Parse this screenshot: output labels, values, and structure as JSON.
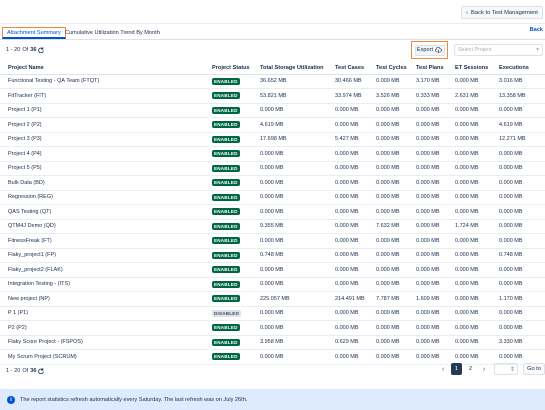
{
  "header": {
    "back_label": "Back to Test Management"
  },
  "tabs": [
    {
      "label": "Attachment Summary"
    },
    {
      "label": "Cumulative Utilization Trend By Month"
    }
  ],
  "back_link": "Back",
  "pager": {
    "range": "1 - 20",
    "of_label": "Of",
    "total": "36"
  },
  "toolbar": {
    "export_label": "Export",
    "select_placeholder": "Select Project"
  },
  "table": {
    "headers": [
      "Project Name",
      "Project Status",
      "Total Storage Utilization",
      "Test Cases",
      "Test Cycles",
      "Test Plans",
      "ET Sessions",
      "Executions"
    ],
    "rows": [
      [
        "Functional Testing - QA Team (FTQT)",
        "ENABLED",
        "36.652 MB",
        "30.466 MB",
        "0.000 MB",
        "3.170 MB",
        "0.000 MB",
        "3.016 MB"
      ],
      [
        "FitTracker (FIT)",
        "ENABLED",
        "53.821 MB",
        "33.974 MB",
        "3.526 MB",
        "0.333 MB",
        "2.631 MB",
        "13.358 MB"
      ],
      [
        "Project 1 (P1)",
        "ENABLED",
        "0.000 MB",
        "0.000 MB",
        "0.000 MB",
        "0.000 MB",
        "0.000 MB",
        "0.000 MB"
      ],
      [
        "Project 2 (P2)",
        "ENABLED",
        "4.619 MB",
        "0.000 MB",
        "0.000 MB",
        "0.000 MB",
        "0.000 MB",
        "4.619 MB"
      ],
      [
        "Project 3 (P3)",
        "ENABLED",
        "17.698 MB",
        "5.427 MB",
        "0.000 MB",
        "0.000 MB",
        "0.000 MB",
        "12.271 MB"
      ],
      [
        "Project 4 (P4)",
        "ENABLED",
        "0.000 MB",
        "0.000 MB",
        "0.000 MB",
        "0.000 MB",
        "0.000 MB",
        "0.000 MB"
      ],
      [
        "Project 5 (P5)",
        "ENABLED",
        "0.000 MB",
        "0.000 MB",
        "0.000 MB",
        "0.000 MB",
        "0.000 MB",
        "0.000 MB"
      ],
      [
        "Bulk Data (BD)",
        "ENABLED",
        "0.000 MB",
        "0.000 MB",
        "0.000 MB",
        "0.000 MB",
        "0.000 MB",
        "0.000 MB"
      ],
      [
        "Regression (REG)",
        "ENABLED",
        "0.000 MB",
        "0.000 MB",
        "0.000 MB",
        "0.000 MB",
        "0.000 MB",
        "0.000 MB"
      ],
      [
        "QAS Testing (QT)",
        "ENABLED",
        "0.000 MB",
        "0.000 MB",
        "0.000 MB",
        "0.000 MB",
        "0.000 MB",
        "0.000 MB"
      ],
      [
        "QTM4J Demo (QD)",
        "ENABLED",
        "9.355 MB",
        "0.000 MB",
        "7.632 MB",
        "0.000 MB",
        "1.724 MB",
        "0.000 MB"
      ],
      [
        "FitnessFreak (FT)",
        "ENABLED",
        "0.000 MB",
        "0.000 MB",
        "0.000 MB",
        "0.000 MB",
        "0.000 MB",
        "0.000 MB"
      ],
      [
        "Flaky_project1 (FP)",
        "ENABLED",
        "0.748 MB",
        "0.000 MB",
        "0.000 MB",
        "0.000 MB",
        "0.000 MB",
        "0.748 MB"
      ],
      [
        "Flaky_project2 (FLAK)",
        "ENABLED",
        "0.000 MB",
        "0.000 MB",
        "0.000 MB",
        "0.000 MB",
        "0.000 MB",
        "0.000 MB"
      ],
      [
        "Integration Testing - (ITS)",
        "ENABLED",
        "0.000 MB",
        "0.000 MB",
        "0.000 MB",
        "0.000 MB",
        "0.000 MB",
        "0.000 MB"
      ],
      [
        "New project (NP)",
        "ENABLED",
        "225.057 MB",
        "214.491 MB",
        "7.787 MB",
        "1.609 MB",
        "0.000 MB",
        "1.170 MB"
      ],
      [
        "P 1 (P1)",
        "DISABLED",
        "0.000 MB",
        "0.000 MB",
        "0.000 MB",
        "0.000 MB",
        "0.000 MB",
        "0.000 MB"
      ],
      [
        "P2 (P2)",
        "ENABLED",
        "0.000 MB",
        "0.000 MB",
        "0.000 MB",
        "0.000 MB",
        "0.000 MB",
        "0.000 MB"
      ],
      [
        "Flaky Score Project - (FSPOS)",
        "ENABLED",
        "3.958 MB",
        "0.629 MB",
        "0.000 MB",
        "0.000 MB",
        "0.000 MB",
        "3.330 MB"
      ],
      [
        "My Scrum Project (SCRUM)",
        "ENABLED",
        "0.000 MB",
        "0.000 MB",
        "0.000 MB",
        "0.000 MB",
        "0.000 MB",
        "0.000 MB"
      ]
    ]
  },
  "pagination": {
    "pages": [
      "1",
      "2"
    ],
    "active": "1",
    "goto_label": "Go to"
  },
  "info": {
    "message": "The report statistics refresh automatically every Saturday. The last refresh was on July 26th."
  },
  "colors": {
    "accent": "#0052cc",
    "enabled": "#006644",
    "highlight": "#f0883e",
    "info_bg": "#deebff"
  }
}
